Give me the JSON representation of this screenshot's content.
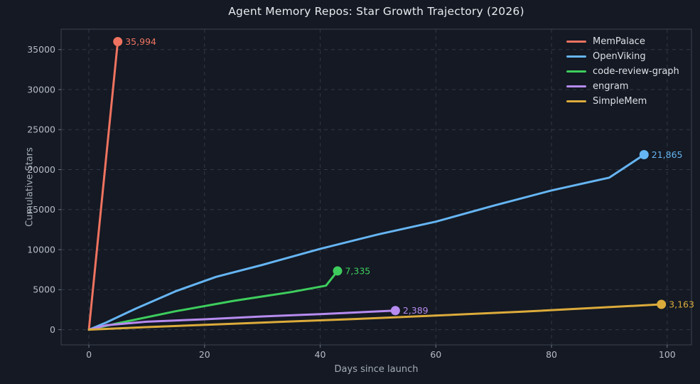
{
  "chart_data": {
    "type": "line",
    "title": "Agent Memory Repos: Star Growth Trajectory (2026)",
    "xlabel": "Days since launch",
    "ylabel": "Cumulative Stars",
    "x_ticks": [
      0,
      20,
      40,
      60,
      80,
      100
    ],
    "y_ticks": [
      0,
      5000,
      10000,
      15000,
      20000,
      25000,
      30000,
      35000
    ],
    "xlim": [
      -4.8,
      104.2
    ],
    "ylim": [
      -1900,
      37550
    ],
    "grid": true,
    "grid_style": "dashed",
    "legend_position": "upper right",
    "background_color": "#141923",
    "series": [
      {
        "name": "MemPalace",
        "color": "#ef7360",
        "end_label": "35,994",
        "final_value": 35994,
        "final_day": 5,
        "points": [
          [
            0,
            0
          ],
          [
            5,
            35994
          ]
        ]
      },
      {
        "name": "OpenViking",
        "color": "#66b5f3",
        "end_label": "21,865",
        "final_value": 21865,
        "final_day": 96,
        "points": [
          [
            0,
            0
          ],
          [
            3,
            900
          ],
          [
            8,
            2600
          ],
          [
            15,
            4800
          ],
          [
            22,
            6600
          ],
          [
            30,
            8100
          ],
          [
            40,
            10100
          ],
          [
            50,
            11900
          ],
          [
            60,
            13500
          ],
          [
            70,
            15500
          ],
          [
            80,
            17400
          ],
          [
            90,
            19000
          ],
          [
            96,
            21865
          ]
        ]
      },
      {
        "name": "code-review-graph",
        "color": "#3ecd5d",
        "end_label": "7,335",
        "final_value": 7335,
        "final_day": 43,
        "points": [
          [
            0,
            0
          ],
          [
            5,
            800
          ],
          [
            15,
            2300
          ],
          [
            25,
            3600
          ],
          [
            35,
            4700
          ],
          [
            41,
            5500
          ],
          [
            43,
            7335
          ]
        ]
      },
      {
        "name": "engram",
        "color": "#b78bf0",
        "end_label": "2,389",
        "final_value": 2389,
        "final_day": 53,
        "points": [
          [
            0,
            0
          ],
          [
            3,
            550
          ],
          [
            10,
            1000
          ],
          [
            20,
            1300
          ],
          [
            30,
            1650
          ],
          [
            40,
            1950
          ],
          [
            53,
            2389
          ]
        ]
      },
      {
        "name": "SimpleMem",
        "color": "#dcab3b",
        "end_label": "3,163",
        "final_value": 3163,
        "final_day": 99,
        "points": [
          [
            0,
            0
          ],
          [
            10,
            320
          ],
          [
            25,
            750
          ],
          [
            50,
            1450
          ],
          [
            75,
            2250
          ],
          [
            99,
            3163
          ]
        ]
      }
    ]
  }
}
